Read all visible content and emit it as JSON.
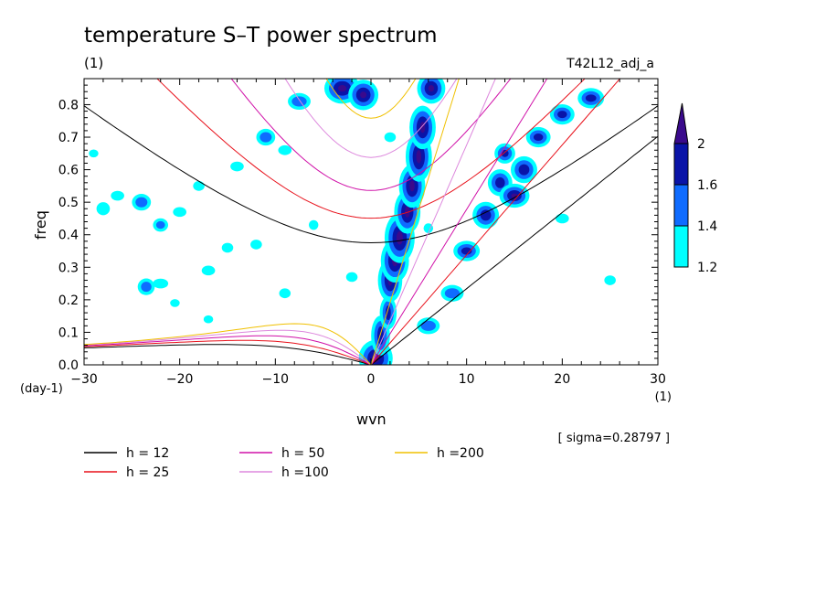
{
  "chart_data": {
    "type": "heatmap",
    "title": "temperature S–T power spectrum",
    "subtitle_left": "(1)",
    "subtitle_right": "T42L12_adj_a",
    "xlabel": "wvn",
    "ylabel": "freq",
    "x_unit_label": "(1)",
    "y_unit_label": "(day-1)",
    "xlim": [
      -30,
      30
    ],
    "ylim": [
      0,
      0.88
    ],
    "x_ticks": [
      -30,
      -20,
      -10,
      0,
      10,
      20,
      30
    ],
    "y_ticks": [
      0.0,
      0.1,
      0.2,
      0.3,
      0.4,
      0.5,
      0.6,
      0.7,
      0.8
    ],
    "x_tick_labels": [
      "−30",
      "−20",
      "−10",
      "0",
      "10",
      "20",
      "30"
    ],
    "y_tick_labels": [
      "0.0",
      "0.1",
      "0.2",
      "0.3",
      "0.4",
      "0.5",
      "0.6",
      "0.7",
      "0.8"
    ],
    "sigma_note": "[ sigma=0.28797 ]",
    "colorbar": {
      "levels": [
        1.2,
        1.4,
        1.6,
        2
      ],
      "labels": [
        "1.2",
        "1.4",
        "1.6",
        "2"
      ],
      "colors": [
        "#00ffff",
        "#0f6cff",
        "#0a14a8",
        "#3a0a8c"
      ]
    },
    "dispersion_curves": [
      {
        "h": 12,
        "label": "h = 12",
        "color": "#000000"
      },
      {
        "h": 25,
        "label": "h = 25",
        "color": "#e8101a"
      },
      {
        "h": 50,
        "label": "h = 50",
        "color": "#d010a8"
      },
      {
        "h": 100,
        "label": "h =100",
        "color": "#dd88dd"
      },
      {
        "h": 200,
        "label": "h =200",
        "color": "#f0c000"
      }
    ],
    "shaded_regions": [
      {
        "x": 0.5,
        "y": 0.02,
        "rx": 1.2,
        "ry": 0.04,
        "level": 4
      },
      {
        "x": 1.0,
        "y": 0.09,
        "rx": 0.6,
        "ry": 0.05,
        "level": 3
      },
      {
        "x": 1.8,
        "y": 0.16,
        "rx": 0.5,
        "ry": 0.04,
        "level": 3
      },
      {
        "x": 2.0,
        "y": 0.26,
        "rx": 0.7,
        "ry": 0.05,
        "level": 4
      },
      {
        "x": 2.5,
        "y": 0.32,
        "rx": 0.9,
        "ry": 0.05,
        "level": 4
      },
      {
        "x": 3.0,
        "y": 0.39,
        "rx": 1.0,
        "ry": 0.06,
        "level": 4
      },
      {
        "x": 3.8,
        "y": 0.47,
        "rx": 0.8,
        "ry": 0.05,
        "level": 4
      },
      {
        "x": 4.3,
        "y": 0.55,
        "rx": 0.8,
        "ry": 0.05,
        "level": 4
      },
      {
        "x": 5.0,
        "y": 0.64,
        "rx": 0.8,
        "ry": 0.06,
        "level": 4
      },
      {
        "x": 5.4,
        "y": 0.73,
        "rx": 0.8,
        "ry": 0.05,
        "level": 4
      },
      {
        "x": 6.3,
        "y": 0.85,
        "rx": 0.9,
        "ry": 0.03,
        "level": 4
      },
      {
        "x": -3.0,
        "y": 0.85,
        "rx": 1.3,
        "ry": 0.03,
        "level": 4
      },
      {
        "x": -0.8,
        "y": 0.83,
        "rx": 1.0,
        "ry": 0.03,
        "level": 4
      },
      {
        "x": 6.0,
        "y": 0.12,
        "rx": 1.0,
        "ry": 0.02,
        "level": 2
      },
      {
        "x": 8.5,
        "y": 0.22,
        "rx": 1.0,
        "ry": 0.02,
        "level": 2
      },
      {
        "x": 10.0,
        "y": 0.35,
        "rx": 1.0,
        "ry": 0.02,
        "level": 3
      },
      {
        "x": 12.0,
        "y": 0.46,
        "rx": 1.0,
        "ry": 0.03,
        "level": 3
      },
      {
        "x": 13.5,
        "y": 0.56,
        "rx": 0.9,
        "ry": 0.03,
        "level": 3
      },
      {
        "x": 14.0,
        "y": 0.65,
        "rx": 0.7,
        "ry": 0.02,
        "level": 3
      },
      {
        "x": 15.0,
        "y": 0.52,
        "rx": 1.0,
        "ry": 0.02,
        "level": 4
      },
      {
        "x": 16.0,
        "y": 0.6,
        "rx": 1.0,
        "ry": 0.03,
        "level": 3
      },
      {
        "x": 17.5,
        "y": 0.7,
        "rx": 0.9,
        "ry": 0.02,
        "level": 3
      },
      {
        "x": 20.0,
        "y": 0.77,
        "rx": 0.9,
        "ry": 0.02,
        "level": 3
      },
      {
        "x": 23.0,
        "y": 0.82,
        "rx": 1.0,
        "ry": 0.02,
        "level": 3
      },
      {
        "x": -28.0,
        "y": 0.48,
        "rx": 0.7,
        "ry": 0.02,
        "level": 1
      },
      {
        "x": -26.5,
        "y": 0.52,
        "rx": 0.7,
        "ry": 0.015,
        "level": 1
      },
      {
        "x": -24.0,
        "y": 0.5,
        "rx": 0.8,
        "ry": 0.02,
        "level": 2
      },
      {
        "x": -22.0,
        "y": 0.43,
        "rx": 0.6,
        "ry": 0.015,
        "level": 2
      },
      {
        "x": -20.0,
        "y": 0.47,
        "rx": 0.7,
        "ry": 0.015,
        "level": 1
      },
      {
        "x": -18.0,
        "y": 0.55,
        "rx": 0.6,
        "ry": 0.015,
        "level": 1
      },
      {
        "x": -17.0,
        "y": 0.29,
        "rx": 0.7,
        "ry": 0.015,
        "level": 1
      },
      {
        "x": -15.0,
        "y": 0.36,
        "rx": 0.6,
        "ry": 0.015,
        "level": 1
      },
      {
        "x": -14.0,
        "y": 0.61,
        "rx": 0.7,
        "ry": 0.015,
        "level": 1
      },
      {
        "x": -12.0,
        "y": 0.37,
        "rx": 0.6,
        "ry": 0.015,
        "level": 1
      },
      {
        "x": -11.0,
        "y": 0.7,
        "rx": 0.8,
        "ry": 0.02,
        "level": 2
      },
      {
        "x": -9.0,
        "y": 0.66,
        "rx": 0.7,
        "ry": 0.015,
        "level": 1
      },
      {
        "x": -7.5,
        "y": 0.81,
        "rx": 1.0,
        "ry": 0.02,
        "level": 2
      },
      {
        "x": -6.0,
        "y": 0.43,
        "rx": 0.5,
        "ry": 0.015,
        "level": 1
      },
      {
        "x": -22.0,
        "y": 0.25,
        "rx": 0.8,
        "ry": 0.015,
        "level": 1
      },
      {
        "x": -23.5,
        "y": 0.24,
        "rx": 0.7,
        "ry": 0.02,
        "level": 2
      },
      {
        "x": -20.5,
        "y": 0.19,
        "rx": 0.5,
        "ry": 0.012,
        "level": 1
      },
      {
        "x": -17.0,
        "y": 0.14,
        "rx": 0.5,
        "ry": 0.012,
        "level": 1
      },
      {
        "x": -9.0,
        "y": 0.22,
        "rx": 0.6,
        "ry": 0.015,
        "level": 1
      },
      {
        "x": -2.0,
        "y": 0.27,
        "rx": 0.6,
        "ry": 0.015,
        "level": 1
      },
      {
        "x": 2.0,
        "y": 0.7,
        "rx": 0.6,
        "ry": 0.015,
        "level": 1
      },
      {
        "x": 6.0,
        "y": 0.42,
        "rx": 0.5,
        "ry": 0.015,
        "level": 1
      },
      {
        "x": 20.0,
        "y": 0.45,
        "rx": 0.7,
        "ry": 0.015,
        "level": 1
      },
      {
        "x": 25.0,
        "y": 0.26,
        "rx": 0.6,
        "ry": 0.015,
        "level": 1
      },
      {
        "x": -29.0,
        "y": 0.65,
        "rx": 0.5,
        "ry": 0.012,
        "level": 1
      }
    ]
  }
}
